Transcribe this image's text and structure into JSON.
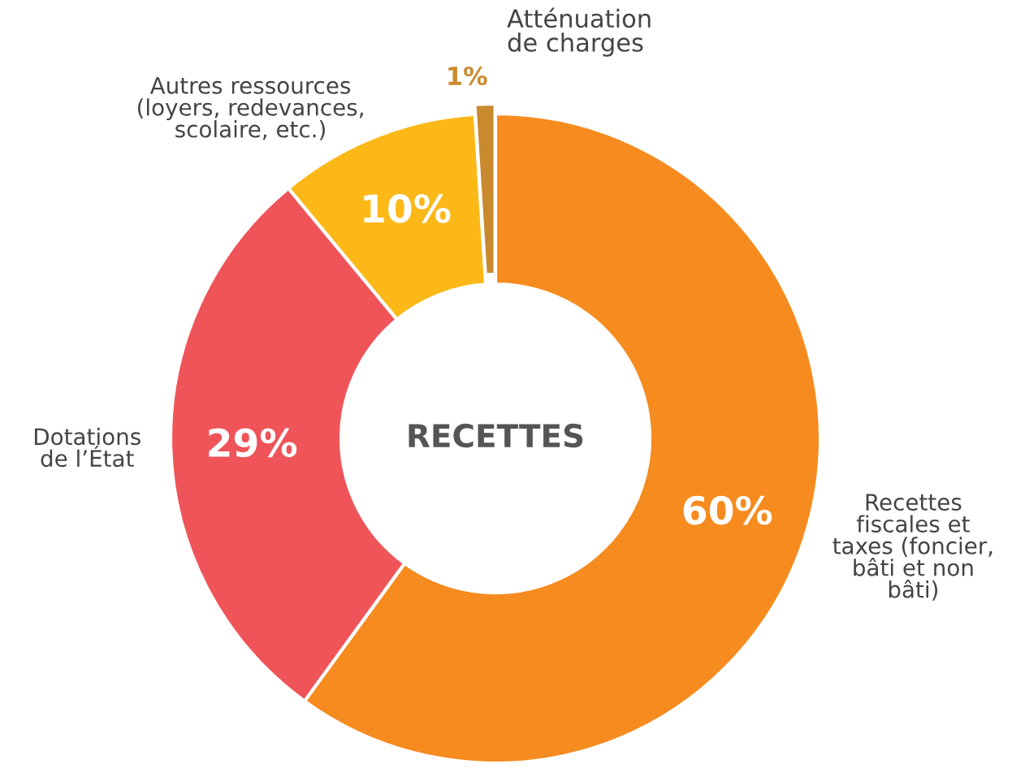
{
  "chart_data": {
    "type": "donut",
    "categories": [
      "Recettes\nfiscales et\ntaxes (foncier,\nbâti et non\nbâti)",
      "Dotations\nde l’État",
      "Autres ressources\n(loyers, redevances,\nscolaire, etc.)",
      "Atténuation\nde charges"
    ],
    "values": [
      60,
      29,
      10,
      1
    ],
    "colors": [
      "#f68b1f",
      "#ef5459",
      "#fbb817",
      "#c98a2e"
    ],
    "value_labels": [
      "60%",
      "29%",
      "10%",
      "1%"
    ],
    "annotations": [
      "RECETTES"
    ],
    "legend": false
  }
}
